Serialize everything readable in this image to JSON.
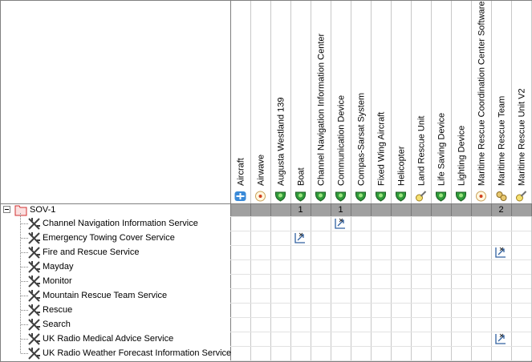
{
  "matrix": {
    "columns": [
      "Aircraft",
      "Airwave",
      "Augusta Westland 139",
      "Boat",
      "Channel Navigation Information Center",
      "Communication Device",
      "Compas-Sarsat System",
      "Fixed Wing Aircraft",
      "Helicopter",
      "Land Rescue Unit",
      "Life Saving Device",
      "Lighting Device",
      "Maritime Rescue Coordination Center Software",
      "Maritime Rescue Team",
      "Maritime Rescue Unit V2"
    ],
    "root": {
      "label": "SOV-1",
      "counts": [
        null,
        null,
        null,
        1,
        null,
        1,
        null,
        null,
        null,
        null,
        null,
        null,
        null,
        2,
        null
      ]
    },
    "rows": [
      {
        "label": "Channel Navigation Information Service",
        "linked_columns": [
          5
        ]
      },
      {
        "label": "Emergency Towing Cover Service",
        "linked_columns": [
          3
        ]
      },
      {
        "label": "Fire and Rescue Service",
        "linked_columns": [
          13
        ]
      },
      {
        "label": "Mayday",
        "linked_columns": []
      },
      {
        "label": "Monitor",
        "linked_columns": []
      },
      {
        "label": "Mountain Rescue Team Service",
        "linked_columns": []
      },
      {
        "label": "Rescue",
        "linked_columns": []
      },
      {
        "label": "Search",
        "linked_columns": []
      },
      {
        "label": "UK Radio Medical Advice Service",
        "linked_columns": [
          13
        ]
      },
      {
        "label": "UK Radio Weather Forecast Information Service",
        "linked_columns": []
      }
    ]
  }
}
